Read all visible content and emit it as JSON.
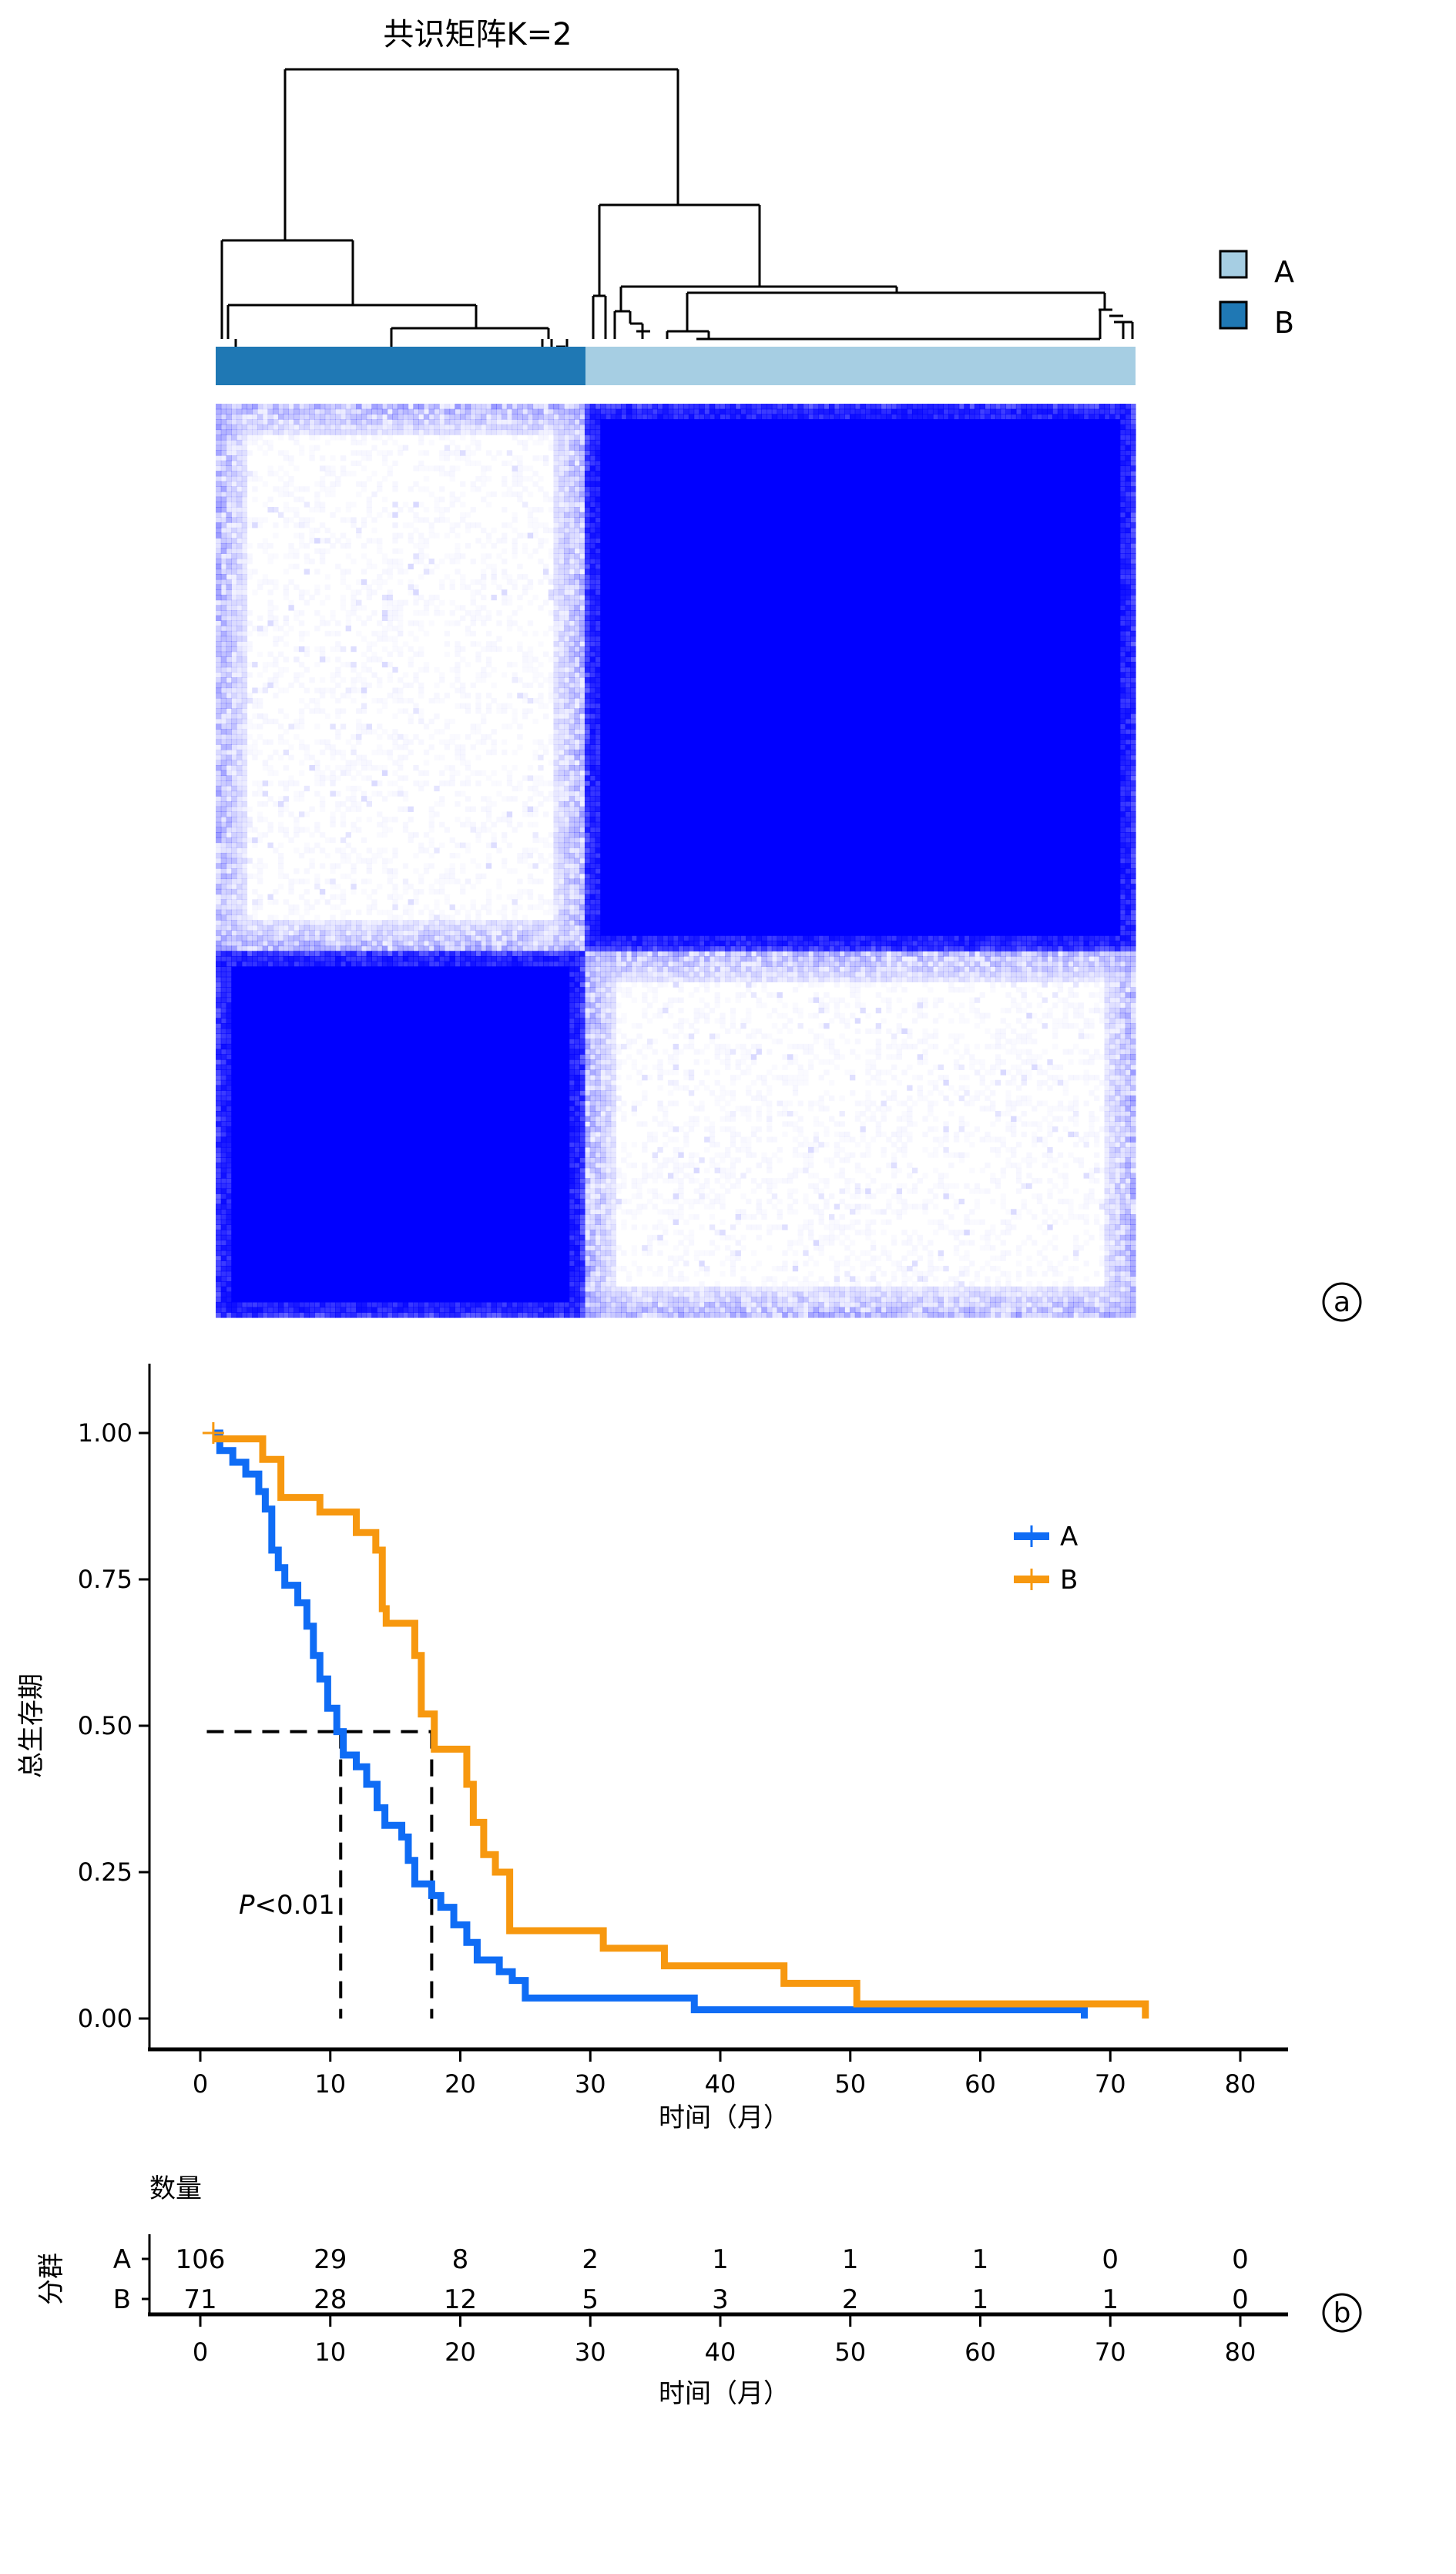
{
  "colors": {
    "cluster_A": "#a6cee3",
    "cluster_B": "#1f78b4",
    "heat": "#0000ff",
    "km_A": "#0f6cf5",
    "km_B": "#f7980f"
  },
  "chart_data": [
    {
      "type": "heatmap",
      "panel_label": "a",
      "title": "共识矩阵K=2",
      "legend": [
        {
          "name": "A",
          "color": "#a6cee3"
        },
        {
          "name": "B",
          "color": "#1f78b4"
        }
      ],
      "clusters": [
        {
          "name": "B",
          "size": 71
        },
        {
          "name": "A",
          "size": 106
        }
      ],
      "value_range": [
        0,
        1
      ]
    },
    {
      "type": "line",
      "panel_label": "b",
      "xlabel": "时间（月）",
      "ylabel": "总生存期",
      "xlim": [
        -4,
        85
      ],
      "ylim": [
        -0.05,
        1.05
      ],
      "xticks": [
        "0",
        "10",
        "20",
        "30",
        "40",
        "50",
        "60",
        "70",
        "80"
      ],
      "yticks": [
        "0.00",
        "0.25",
        "0.50",
        "0.75",
        "1.00"
      ],
      "legend_position": "right",
      "annotation": {
        "p_italic": "P",
        "p_rest": "<0.01"
      },
      "median_lines": {
        "y": 0.49,
        "x": [
          10.8,
          17.8
        ]
      },
      "series": [
        {
          "name": "A",
          "color": "#0f6cf5",
          "steps": [
            [
              1,
              1.0
            ],
            [
              1.5,
              0.97
            ],
            [
              2.5,
              0.95
            ],
            [
              3.5,
              0.93
            ],
            [
              4.5,
              0.9
            ],
            [
              5,
              0.87
            ],
            [
              5.5,
              0.8
            ],
            [
              6,
              0.77
            ],
            [
              6.5,
              0.74
            ],
            [
              7.5,
              0.71
            ],
            [
              8.2,
              0.67
            ],
            [
              8.7,
              0.62
            ],
            [
              9.2,
              0.58
            ],
            [
              9.8,
              0.53
            ],
            [
              10.5,
              0.49
            ],
            [
              11,
              0.45
            ],
            [
              12,
              0.43
            ],
            [
              12.8,
              0.4
            ],
            [
              13.6,
              0.36
            ],
            [
              14.2,
              0.33
            ],
            [
              15.5,
              0.31
            ],
            [
              16,
              0.27
            ],
            [
              16.5,
              0.23
            ],
            [
              17.8,
              0.21
            ],
            [
              18.5,
              0.19
            ],
            [
              19.5,
              0.16
            ],
            [
              20.5,
              0.13
            ],
            [
              21.3,
              0.1
            ],
            [
              23,
              0.08
            ],
            [
              24,
              0.065
            ],
            [
              25,
              0.035
            ],
            [
              38,
              0.015
            ],
            [
              68,
              0.0
            ]
          ]
        },
        {
          "name": "B",
          "color": "#f7980f",
          "steps": [
            [
              1,
              0.99
            ],
            [
              4.8,
              0.955
            ],
            [
              6.2,
              0.89
            ],
            [
              9.2,
              0.865
            ],
            [
              12,
              0.83
            ],
            [
              13.5,
              0.8
            ],
            [
              14,
              0.7
            ],
            [
              14.3,
              0.675
            ],
            [
              16.5,
              0.62
            ],
            [
              17,
              0.52
            ],
            [
              18,
              0.46
            ],
            [
              20.5,
              0.4
            ],
            [
              21,
              0.335
            ],
            [
              21.8,
              0.28
            ],
            [
              22.7,
              0.25
            ],
            [
              23.8,
              0.15
            ],
            [
              31,
              0.12
            ],
            [
              35.7,
              0.09
            ],
            [
              44.9,
              0.06
            ],
            [
              50.5,
              0.025
            ],
            [
              72.7,
              0.0
            ]
          ]
        }
      ]
    },
    {
      "type": "table",
      "title": "数量",
      "row_axis_label": "分群",
      "xlabel": "时间（月）",
      "times": [
        "0",
        "10",
        "20",
        "30",
        "40",
        "50",
        "60",
        "70",
        "80"
      ],
      "rows": [
        {
          "name": "A",
          "color": "#0f6cf5",
          "values": [
            "106",
            "29",
            "8",
            "2",
            "1",
            "1",
            "1",
            "0",
            "0"
          ]
        },
        {
          "name": "B",
          "color": "#f7980f",
          "values": [
            "71",
            "28",
            "12",
            "5",
            "3",
            "2",
            "1",
            "1",
            "0"
          ]
        }
      ]
    }
  ]
}
